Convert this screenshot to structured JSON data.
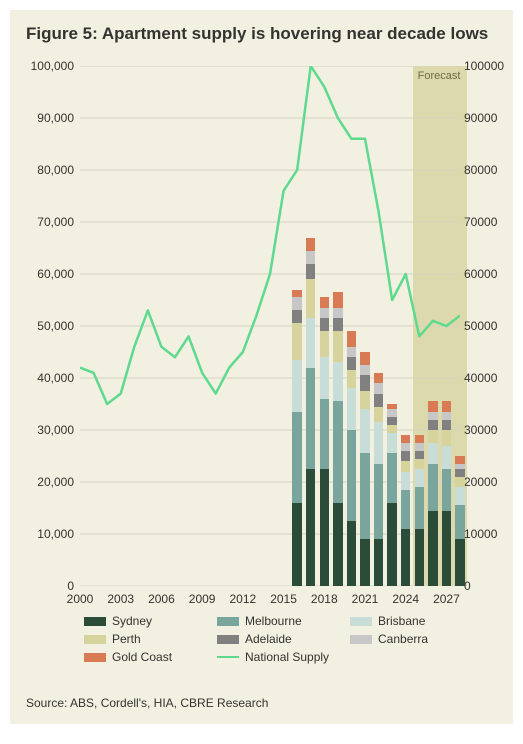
{
  "figure": {
    "title": "Figure 5:  Apartment supply is hovering near decade lows",
    "source": "Source: ABS, Cordell's, HIA, CBRE Research",
    "background_color": "#f1f0e1",
    "text_color": "#33332f",
    "grid_color": "#d5d3bf",
    "forecast_band_color": "rgba(196,190,108,0.45)",
    "forecast_label": "Forecast",
    "forecast_start": 2025,
    "forecast_end": 2028,
    "title_fontsize": 17,
    "label_fontsize": 12
  },
  "axes": {
    "x": {
      "min": 2000,
      "max": 2028,
      "ticks": [
        2000,
        2003,
        2006,
        2009,
        2012,
        2015,
        2018,
        2021,
        2024,
        2027
      ]
    },
    "y_left": {
      "min": 0,
      "max": 100000,
      "ticks": [
        0,
        10000,
        20000,
        30000,
        40000,
        50000,
        60000,
        70000,
        80000,
        90000,
        100000
      ],
      "format": "comma"
    },
    "y_right": {
      "min": 0,
      "max": 100000,
      "ticks": [
        0,
        10000,
        20000,
        30000,
        40000,
        50000,
        60000,
        70000,
        80000,
        90000,
        100000
      ],
      "format": "plain"
    }
  },
  "series_colors": {
    "Sydney": "#2c4c3a",
    "Melbourne": "#7aa59d",
    "Brisbane": "#c8dcd8",
    "Perth": "#d6d49c",
    "Adelaide": "#808080",
    "Canberra": "#c7c7c7",
    "Gold Coast": "#d87b55",
    "National Supply": "#5fd98e"
  },
  "stack_order": [
    "Sydney",
    "Melbourne",
    "Brisbane",
    "Perth",
    "Adelaide",
    "Canberra",
    "Gold Coast"
  ],
  "bars": [
    {
      "year": 2016,
      "Sydney": 16000,
      "Melbourne": 17500,
      "Brisbane": 10000,
      "Perth": 7000,
      "Adelaide": 2500,
      "Canberra": 2500,
      "Gold Coast": 1500
    },
    {
      "year": 2017,
      "Sydney": 22500,
      "Melbourne": 19500,
      "Brisbane": 9500,
      "Perth": 7500,
      "Adelaide": 3000,
      "Canberra": 2500,
      "Gold Coast": 2500
    },
    {
      "year": 2018,
      "Sydney": 22500,
      "Melbourne": 13500,
      "Brisbane": 8000,
      "Perth": 5000,
      "Adelaide": 2500,
      "Canberra": 2000,
      "Gold Coast": 2000
    },
    {
      "year": 2019,
      "Sydney": 16000,
      "Melbourne": 19500,
      "Brisbane": 7500,
      "Perth": 6000,
      "Adelaide": 2500,
      "Canberra": 2000,
      "Gold Coast": 3000
    },
    {
      "year": 2020,
      "Sydney": 12500,
      "Melbourne": 17500,
      "Brisbane": 8000,
      "Perth": 3500,
      "Adelaide": 2500,
      "Canberra": 2000,
      "Gold Coast": 3000
    },
    {
      "year": 2021,
      "Sydney": 9000,
      "Melbourne": 16500,
      "Brisbane": 8500,
      "Perth": 3500,
      "Adelaide": 3000,
      "Canberra": 2000,
      "Gold Coast": 2500
    },
    {
      "year": 2022,
      "Sydney": 9000,
      "Melbourne": 14500,
      "Brisbane": 8000,
      "Perth": 3000,
      "Adelaide": 2500,
      "Canberra": 2000,
      "Gold Coast": 2000
    },
    {
      "year": 2023,
      "Sydney": 16000,
      "Melbourne": 9500,
      "Brisbane": 4000,
      "Perth": 1500,
      "Adelaide": 1500,
      "Canberra": 1500,
      "Gold Coast": 1000
    },
    {
      "year": 2024,
      "Sydney": 11000,
      "Melbourne": 7500,
      "Brisbane": 3500,
      "Perth": 2000,
      "Adelaide": 2000,
      "Canberra": 1500,
      "Gold Coast": 1500
    },
    {
      "year": 2025,
      "Sydney": 11000,
      "Melbourne": 8000,
      "Brisbane": 3500,
      "Perth": 2000,
      "Adelaide": 1500,
      "Canberra": 1500,
      "Gold Coast": 1500
    },
    {
      "year": 2026,
      "Sydney": 14500,
      "Melbourne": 9000,
      "Brisbane": 4000,
      "Perth": 2500,
      "Adelaide": 2000,
      "Canberra": 1500,
      "Gold Coast": 2000
    },
    {
      "year": 2027,
      "Sydney": 14500,
      "Melbourne": 8000,
      "Brisbane": 4500,
      "Perth": 3000,
      "Adelaide": 2000,
      "Canberra": 1500,
      "Gold Coast": 2000
    },
    {
      "year": 2028,
      "Sydney": 9000,
      "Melbourne": 6500,
      "Brisbane": 3500,
      "Perth": 2000,
      "Adelaide": 1500,
      "Canberra": 1000,
      "Gold Coast": 1500
    }
  ],
  "bar_width_years": 0.7,
  "line": {
    "name": "National Supply",
    "points": [
      [
        2000,
        42000
      ],
      [
        2001,
        41000
      ],
      [
        2002,
        35000
      ],
      [
        2003,
        37000
      ],
      [
        2004,
        46000
      ],
      [
        2005,
        53000
      ],
      [
        2006,
        46000
      ],
      [
        2007,
        44000
      ],
      [
        2008,
        48000
      ],
      [
        2009,
        41000
      ],
      [
        2010,
        37000
      ],
      [
        2011,
        42000
      ],
      [
        2012,
        45000
      ],
      [
        2013,
        52000
      ],
      [
        2014,
        60000
      ],
      [
        2015,
        76000
      ],
      [
        2016,
        80000
      ],
      [
        2017,
        100000
      ],
      [
        2018,
        96000
      ],
      [
        2019,
        90000
      ],
      [
        2020,
        86000
      ],
      [
        2021,
        86000
      ],
      [
        2022,
        72000
      ],
      [
        2023,
        55000
      ],
      [
        2024,
        60000
      ],
      [
        2025,
        48000
      ],
      [
        2026,
        51000
      ],
      [
        2027,
        50000
      ],
      [
        2028,
        52000
      ]
    ]
  },
  "legend": [
    [
      "Sydney",
      "Melbourne",
      "Brisbane"
    ],
    [
      "Perth",
      "Adelaide",
      "Canberra"
    ],
    [
      "Gold Coast",
      "National Supply"
    ]
  ]
}
